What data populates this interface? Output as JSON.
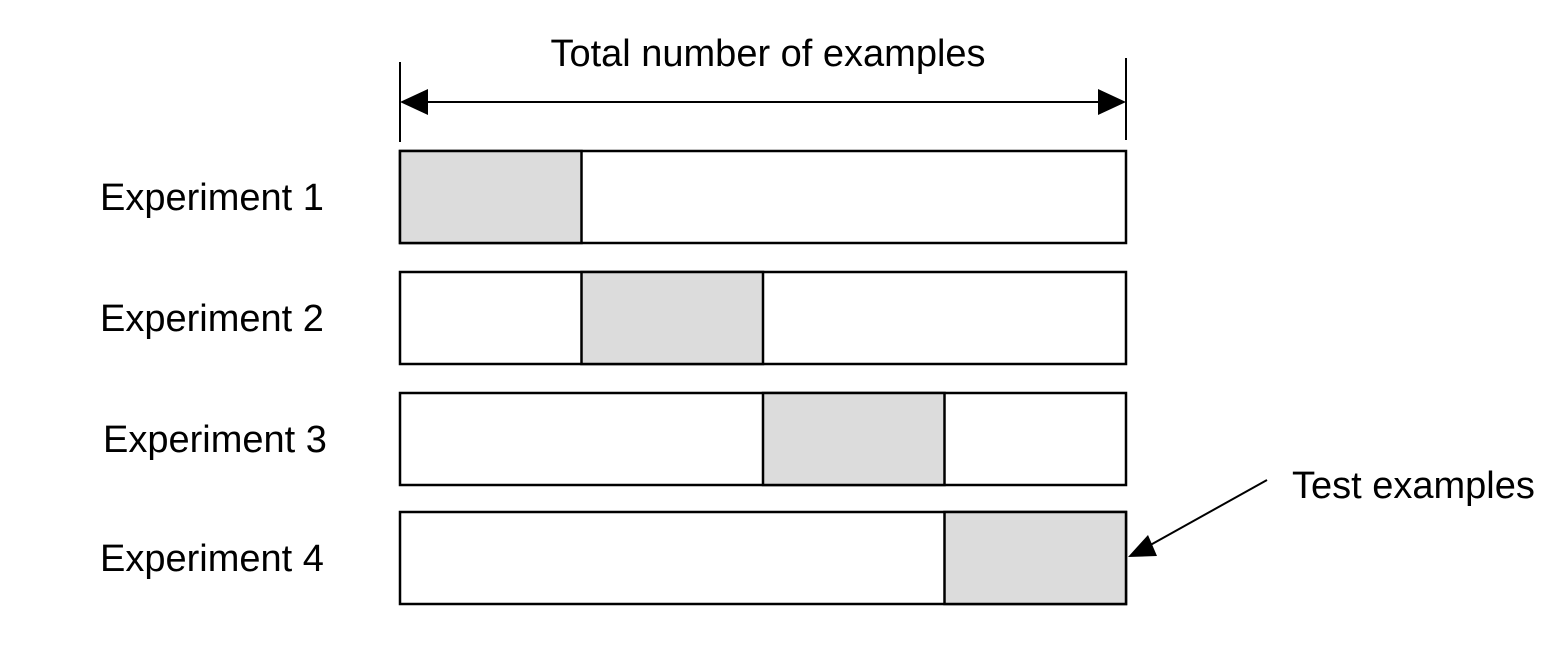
{
  "diagram": {
    "title": "Total number of examples",
    "callout_label": "Test examples",
    "colors": {
      "test_fill": "#dcdcdc",
      "bar_fill": "#ffffff",
      "stroke": "#000000"
    },
    "segments_per_bar": 4,
    "experiments": [
      {
        "label": "Experiment 1",
        "test_segment": 1
      },
      {
        "label": "Experiment 2",
        "test_segment": 2
      },
      {
        "label": "Experiment 3",
        "test_segment": 3
      },
      {
        "label": "Experiment 4",
        "test_segment": 4
      }
    ]
  }
}
